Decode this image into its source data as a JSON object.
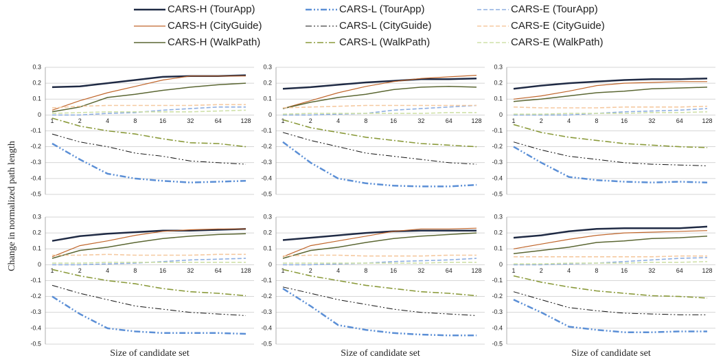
{
  "chart_data": [
    {
      "type": "line",
      "y_label": "Change in normalized path length",
      "categories": [
        "1",
        "2",
        "4",
        "8",
        "16",
        "32",
        "64",
        "128"
      ],
      "ylim": [
        -0.5,
        0.3
      ],
      "yticks": [
        0.3,
        0.2,
        0.1,
        0,
        -0.1,
        -0.2,
        -0.3,
        -0.4,
        -0.5
      ],
      "grid": true,
      "series": [
        {
          "name": "CARS-H (TourApp)",
          "color": "#1f2a44",
          "linestyle": "solid",
          "linewidth": 2.5,
          "values": [
            0.175,
            0.18,
            0.2,
            0.22,
            0.24,
            0.245,
            0.245,
            0.25
          ]
        },
        {
          "name": "CARS-H (CityGuide)",
          "color": "#c0652a",
          "linestyle": "solid",
          "linewidth": 1.2,
          "values": [
            0.03,
            0.09,
            0.14,
            0.18,
            0.22,
            0.245,
            0.245,
            0.245
          ]
        },
        {
          "name": "CARS-H (WalkPath)",
          "color": "#5a6632",
          "linestyle": "solid",
          "linewidth": 1.5,
          "values": [
            0.02,
            0.05,
            0.11,
            0.13,
            0.155,
            0.175,
            0.19,
            0.2
          ]
        },
        {
          "name": "CARS-L (TourApp)",
          "color": "#5b8fd6",
          "linestyle": "dash-dot-dot",
          "linewidth": 2.5,
          "values": [
            -0.18,
            -0.28,
            -0.37,
            -0.4,
            -0.415,
            -0.425,
            -0.42,
            -0.415
          ]
        },
        {
          "name": "CARS-L (CityGuide)",
          "color": "#111111",
          "linestyle": "dash-dot-dot",
          "linewidth": 1,
          "values": [
            -0.12,
            -0.17,
            -0.2,
            -0.24,
            -0.26,
            -0.29,
            -0.3,
            -0.31
          ]
        },
        {
          "name": "CARS-L (WalkPath)",
          "color": "#8a9a3a",
          "linestyle": "dash-dot",
          "linewidth": 1.6,
          "values": [
            -0.02,
            -0.07,
            -0.1,
            -0.12,
            -0.15,
            -0.175,
            -0.18,
            -0.2
          ]
        },
        {
          "name": "CARS-E (TourApp)",
          "color": "#8eaee0",
          "linestyle": "dashed",
          "linewidth": 1.6,
          "values": [
            0,
            0,
            0.01,
            0.015,
            0.03,
            0.04,
            0.05,
            0.05
          ]
        },
        {
          "name": "CARS-E (CityGuide)",
          "color": "#f5c9a0",
          "linestyle": "dashed",
          "linewidth": 1.6,
          "values": [
            0.045,
            0.055,
            0.06,
            0.06,
            0.06,
            0.06,
            0.065,
            0.065
          ]
        },
        {
          "name": "CARS-E (WalkPath)",
          "color": "#cfe0a8",
          "linestyle": "dashed",
          "linewidth": 1.6,
          "values": [
            0.01,
            0.015,
            0.02,
            0.02,
            0.02,
            0.02,
            0.025,
            0.03
          ]
        }
      ]
    },
    {
      "type": "line",
      "categories": [
        "1",
        "2",
        "4",
        "8",
        "16",
        "32",
        "64",
        "128"
      ],
      "ylim": [
        -0.5,
        0.3
      ],
      "yticks": [
        0.3,
        0.2,
        0.1,
        0,
        -0.1,
        -0.2,
        -0.3,
        -0.4,
        -0.5
      ],
      "grid": true,
      "series": [
        {
          "values": [
            0.165,
            0.175,
            0.19,
            0.205,
            0.215,
            0.225,
            0.225,
            0.23
          ]
        },
        {
          "values": [
            0.04,
            0.09,
            0.14,
            0.18,
            0.21,
            0.23,
            0.24,
            0.25
          ]
        },
        {
          "values": [
            0.04,
            0.08,
            0.11,
            0.13,
            0.16,
            0.175,
            0.18,
            0.175
          ]
        },
        {
          "values": [
            -0.17,
            -0.3,
            -0.4,
            -0.43,
            -0.445,
            -0.45,
            -0.45,
            -0.44
          ]
        },
        {
          "values": [
            -0.11,
            -0.16,
            -0.2,
            -0.24,
            -0.26,
            -0.28,
            -0.3,
            -0.31
          ]
        },
        {
          "values": [
            -0.03,
            -0.08,
            -0.11,
            -0.14,
            -0.16,
            -0.18,
            -0.19,
            -0.2
          ]
        },
        {
          "values": [
            0,
            0,
            0.005,
            0.01,
            0.03,
            0.04,
            0.05,
            0.06
          ]
        },
        {
          "values": [
            0.045,
            0.05,
            0.055,
            0.06,
            0.06,
            0.06,
            0.06,
            0.06
          ]
        },
        {
          "values": [
            0.005,
            0.01,
            0.01,
            0.01,
            0.01,
            0.01,
            0.015,
            0.015
          ]
        }
      ]
    },
    {
      "type": "line",
      "categories": [
        "1",
        "2",
        "4",
        "8",
        "16",
        "32",
        "64",
        "128"
      ],
      "ylim": [
        -0.5,
        0.3
      ],
      "yticks": [
        0.3,
        0.2,
        0.1,
        0,
        -0.1,
        -0.2,
        -0.3,
        -0.4,
        -0.5
      ],
      "grid": true,
      "series": [
        {
          "values": [
            0.165,
            0.185,
            0.2,
            0.21,
            0.22,
            0.225,
            0.225,
            0.23
          ]
        },
        {
          "values": [
            0.1,
            0.12,
            0.15,
            0.185,
            0.2,
            0.205,
            0.21,
            0.21
          ]
        },
        {
          "values": [
            0.085,
            0.1,
            0.12,
            0.14,
            0.15,
            0.165,
            0.17,
            0.175
          ]
        },
        {
          "values": [
            -0.2,
            -0.3,
            -0.39,
            -0.41,
            -0.42,
            -0.425,
            -0.42,
            -0.425
          ]
        },
        {
          "values": [
            -0.17,
            -0.22,
            -0.26,
            -0.28,
            -0.3,
            -0.31,
            -0.315,
            -0.32
          ]
        },
        {
          "values": [
            -0.06,
            -0.11,
            -0.14,
            -0.16,
            -0.18,
            -0.19,
            -0.2,
            -0.205
          ]
        },
        {
          "values": [
            0,
            0,
            0,
            0.01,
            0.02,
            0.025,
            0.03,
            0.04
          ]
        },
        {
          "values": [
            0.05,
            0.045,
            0.045,
            0.045,
            0.05,
            0.05,
            0.05,
            0.055
          ]
        },
        {
          "values": [
            0.005,
            0.005,
            0.01,
            0.01,
            0.01,
            0.015,
            0.015,
            0.02
          ]
        }
      ]
    },
    {
      "type": "line",
      "x_label": "Size of candidate set",
      "categories": [
        "1",
        "2",
        "4",
        "8",
        "16",
        "32",
        "64",
        "128"
      ],
      "ylim": [
        -0.5,
        0.3
      ],
      "yticks": [
        0.3,
        0.2,
        0.1,
        0,
        -0.1,
        -0.2,
        -0.3,
        -0.4,
        -0.5
      ],
      "grid": true,
      "series": [
        {
          "values": [
            0.15,
            0.18,
            0.195,
            0.205,
            0.215,
            0.215,
            0.22,
            0.225
          ]
        },
        {
          "values": [
            0.05,
            0.12,
            0.15,
            0.185,
            0.21,
            0.22,
            0.225,
            0.225
          ]
        },
        {
          "values": [
            0.04,
            0.09,
            0.11,
            0.14,
            0.165,
            0.18,
            0.19,
            0.195
          ]
        },
        {
          "values": [
            -0.2,
            -0.31,
            -0.4,
            -0.42,
            -0.43,
            -0.43,
            -0.43,
            -0.435
          ]
        },
        {
          "values": [
            -0.13,
            -0.18,
            -0.22,
            -0.26,
            -0.28,
            -0.3,
            -0.31,
            -0.32
          ]
        },
        {
          "values": [
            -0.03,
            -0.07,
            -0.1,
            -0.12,
            -0.15,
            -0.17,
            -0.18,
            -0.195
          ]
        },
        {
          "values": [
            0,
            0,
            0.005,
            0.01,
            0.02,
            0.03,
            0.035,
            0.04
          ]
        },
        {
          "values": [
            0.06,
            0.06,
            0.065,
            0.06,
            0.06,
            0.06,
            0.065,
            0.065
          ]
        },
        {
          "values": [
            0.01,
            0.01,
            0.015,
            0.015,
            0.015,
            0.015,
            0.015,
            0.015
          ]
        }
      ]
    },
    {
      "type": "line",
      "x_label": "Size of candidate set",
      "categories": [
        "1",
        "2",
        "4",
        "8",
        "16",
        "32",
        "64",
        "128"
      ],
      "ylim": [
        -0.5,
        0.3
      ],
      "yticks": [
        0.3,
        0.2,
        0.1,
        0,
        -0.1,
        -0.2,
        -0.3,
        -0.4,
        -0.5
      ],
      "grid": true,
      "series": [
        {
          "values": [
            0.155,
            0.17,
            0.185,
            0.2,
            0.21,
            0.215,
            0.215,
            0.215
          ]
        },
        {
          "values": [
            0.05,
            0.12,
            0.15,
            0.18,
            0.21,
            0.225,
            0.225,
            0.23
          ]
        },
        {
          "values": [
            0.04,
            0.09,
            0.11,
            0.14,
            0.165,
            0.18,
            0.19,
            0.2
          ]
        },
        {
          "values": [
            -0.15,
            -0.26,
            -0.38,
            -0.41,
            -0.43,
            -0.44,
            -0.445,
            -0.445
          ]
        },
        {
          "values": [
            -0.14,
            -0.18,
            -0.22,
            -0.25,
            -0.28,
            -0.3,
            -0.31,
            -0.32
          ]
        },
        {
          "values": [
            -0.03,
            -0.07,
            -0.1,
            -0.13,
            -0.15,
            -0.17,
            -0.18,
            -0.195
          ]
        },
        {
          "values": [
            0,
            0,
            0.005,
            0.01,
            0.02,
            0.025,
            0.03,
            0.04
          ]
        },
        {
          "values": [
            0.055,
            0.06,
            0.06,
            0.055,
            0.055,
            0.055,
            0.06,
            0.06
          ]
        },
        {
          "values": [
            0.01,
            0.01,
            0.01,
            0.01,
            0.01,
            0.01,
            0.015,
            0.015
          ]
        }
      ]
    },
    {
      "type": "line",
      "x_label": "Size of candidate set",
      "categories": [
        "1",
        "2",
        "4",
        "8",
        "16",
        "32",
        "64",
        "128"
      ],
      "ylim": [
        -0.5,
        0.3
      ],
      "yticks": [
        0.3,
        0.2,
        0.1,
        0,
        -0.1,
        -0.2,
        -0.3,
        -0.4,
        -0.5
      ],
      "grid": true,
      "series": [
        {
          "values": [
            0.17,
            0.185,
            0.21,
            0.225,
            0.23,
            0.23,
            0.23,
            0.24
          ]
        },
        {
          "values": [
            0.1,
            0.13,
            0.16,
            0.185,
            0.2,
            0.205,
            0.21,
            0.215
          ]
        },
        {
          "values": [
            0.07,
            0.09,
            0.11,
            0.14,
            0.15,
            0.165,
            0.17,
            0.18
          ]
        },
        {
          "values": [
            -0.22,
            -0.3,
            -0.39,
            -0.41,
            -0.425,
            -0.425,
            -0.42,
            -0.42
          ]
        },
        {
          "values": [
            -0.17,
            -0.22,
            -0.27,
            -0.29,
            -0.305,
            -0.31,
            -0.315,
            -0.315
          ]
        },
        {
          "values": [
            -0.07,
            -0.11,
            -0.14,
            -0.165,
            -0.18,
            -0.195,
            -0.2,
            -0.21
          ]
        },
        {
          "values": [
            0,
            0,
            0.005,
            0.01,
            0.02,
            0.03,
            0.04,
            0.045
          ]
        },
        {
          "values": [
            0.05,
            0.05,
            0.05,
            0.05,
            0.05,
            0.05,
            0.055,
            0.055
          ]
        },
        {
          "values": [
            0.005,
            0.005,
            0.01,
            0.01,
            0.01,
            0.015,
            0.015,
            0.02
          ]
        }
      ]
    }
  ]
}
